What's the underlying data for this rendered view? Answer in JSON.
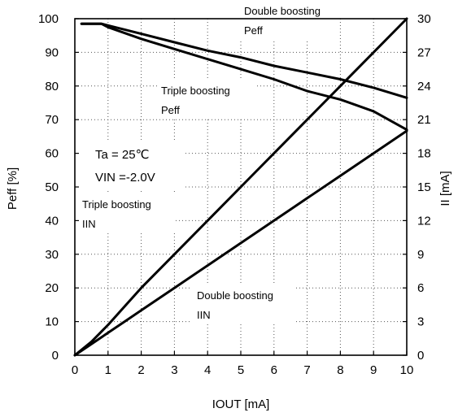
{
  "chart_data": {
    "type": "line",
    "title": "",
    "xlabel": "IOUT [mA]",
    "ylabel_left": "Peff [%]",
    "ylabel_right": "II [mA]",
    "xlim": [
      0,
      10
    ],
    "ylim_left": [
      0,
      100
    ],
    "ylim_right": [
      0,
      30
    ],
    "x_ticks": [
      "0",
      "1",
      "2",
      "3",
      "4",
      "5",
      "6",
      "7",
      "8",
      "9",
      "10"
    ],
    "y_left_ticks": [
      "0",
      "10",
      "20",
      "30",
      "40",
      "50",
      "60",
      "70",
      "80",
      "90",
      "100"
    ],
    "y_right_ticks": [
      "0",
      "3",
      "6",
      "9",
      "12",
      "15",
      "18",
      "21",
      "24",
      "27",
      "30"
    ],
    "grid": true,
    "series": [
      {
        "name": "Double boosting Peff",
        "axis": "left",
        "x": [
          0.2,
          0.5,
          0.8,
          1,
          2,
          3,
          4,
          5,
          6,
          7,
          8,
          9,
          10
        ],
        "y": [
          98.5,
          98.5,
          98.5,
          98,
          95.5,
          93,
          90.5,
          88.5,
          86,
          84,
          82,
          79.5,
          76.5
        ]
      },
      {
        "name": "Triple boosting Peff",
        "axis": "left",
        "x": [
          0.2,
          0.5,
          0.8,
          1,
          2,
          3,
          4,
          5,
          6,
          7,
          8,
          9,
          10
        ],
        "y": [
          98.5,
          98.5,
          98.5,
          97.5,
          94,
          91,
          88,
          85,
          82,
          78.5,
          76,
          72.5,
          67
        ]
      },
      {
        "name": "Triple boosting IIN",
        "axis": "right",
        "x": [
          0,
          0.5,
          1,
          2,
          3,
          4,
          5,
          6,
          7,
          8,
          9,
          10
        ],
        "y": [
          0,
          1.2,
          2.7,
          6,
          9,
          12,
          15,
          18,
          21,
          24,
          27,
          30
        ]
      },
      {
        "name": "Double boosting IIN",
        "axis": "right",
        "x": [
          0,
          0.5,
          1,
          1.5,
          2,
          3,
          4,
          5,
          6,
          7,
          8,
          9,
          10
        ],
        "y": [
          0,
          1,
          2,
          3,
          4,
          6,
          8,
          10,
          12,
          14,
          16,
          18,
          20
        ]
      }
    ],
    "annotations": {
      "double_peff_line1": "Double boosting",
      "double_peff_line2": "Peff",
      "triple_peff_line1": "Triple boosting",
      "triple_peff_line2": "Peff",
      "temp": "Ta = 25℃",
      "vin": "VIN =-2.0V",
      "triple_iin_line1": "Triple boosting",
      "triple_iin_line2": "IIN",
      "double_iin_line1": "Double boosting",
      "double_iin_line2": "IIN"
    }
  }
}
